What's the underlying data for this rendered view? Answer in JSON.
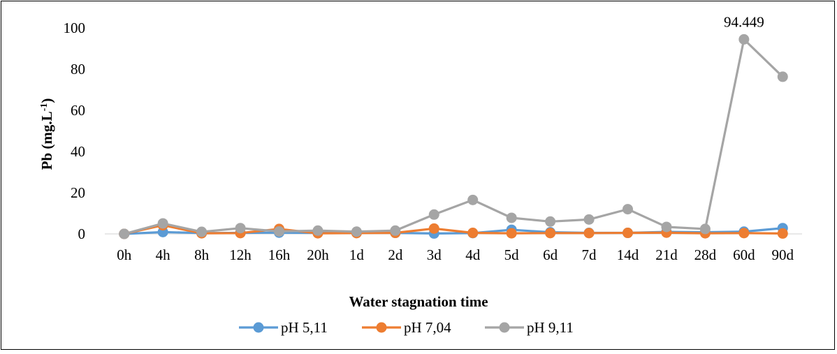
{
  "chart_data": {
    "type": "line",
    "title": "",
    "xlabel": "Water stagnation time",
    "ylabel": "Pb (mg.L",
    "ylabel_sup": "-1",
    "ylabel_close": ")",
    "ylim": [
      0,
      100
    ],
    "yticks": [
      0,
      20,
      40,
      60,
      80,
      100
    ],
    "grid": false,
    "legend_position": "bottom",
    "categories": [
      "0h",
      "4h",
      "8h",
      "12h",
      "16h",
      "20h",
      "1d",
      "2d",
      "3d",
      "4d",
      "5d",
      "6d",
      "7d",
      "14d",
      "21d",
      "28d",
      "60d",
      "90d"
    ],
    "series": [
      {
        "name": "pH 5,11",
        "color": "#5b9bd5",
        "values": [
          0,
          0.9,
          0.4,
          0.5,
          0.6,
          0.5,
          0.6,
          0.5,
          0.2,
          0.4,
          2.0,
          0.8,
          0.5,
          0.5,
          1.0,
          0.8,
          1.1,
          2.8
        ]
      },
      {
        "name": "pH 7,04",
        "color": "#ed7d31",
        "values": [
          0,
          4.2,
          0.3,
          0.4,
          2.4,
          0.3,
          0.4,
          0.5,
          2.6,
          0.5,
          0.3,
          0.4,
          0.4,
          0.5,
          0.6,
          0.3,
          0.4,
          0.2
        ]
      },
      {
        "name": "pH 9,11",
        "color": "#a5a5a5",
        "values": [
          0,
          5.1,
          1.0,
          2.8,
          1.2,
          1.6,
          1.1,
          1.6,
          9.4,
          16.5,
          7.8,
          6.0,
          7.0,
          12.0,
          3.4,
          2.4,
          94.449,
          76.3
        ]
      }
    ],
    "annotations": [
      {
        "series": 2,
        "index": 16,
        "text": "94.449"
      }
    ]
  }
}
